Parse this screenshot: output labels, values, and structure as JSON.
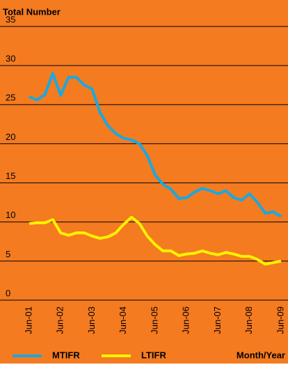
{
  "chart_data": {
    "type": "line",
    "y_label": "Total Number",
    "x_label": "Month/Year",
    "background": "#f47b20",
    "grid": true,
    "categories": [
      "Jun-01",
      null,
      null,
      null,
      "Jun-02",
      null,
      null,
      null,
      "Jun-03",
      null,
      null,
      null,
      "Jun-04",
      null,
      null,
      null,
      "Jun-05",
      null,
      null,
      null,
      "Jun-06",
      null,
      null,
      null,
      "Jun-07",
      null,
      null,
      null,
      "Jun-08",
      null,
      null,
      null,
      "Jun-09"
    ],
    "series": [
      {
        "name": "MTIFR",
        "color": "#1ba8e0",
        "values": [
          26,
          25.6,
          26.3,
          29,
          26.2,
          28.5,
          28.5,
          27.5,
          27,
          24,
          22.3,
          21.3,
          20.7,
          20.5,
          20,
          18.5,
          16,
          14.8,
          14.2,
          13,
          13.1,
          13.8,
          14.3,
          14,
          13.6,
          14,
          13.1,
          12.8,
          13.6,
          12.5,
          11.1,
          11.3,
          10.7
        ]
      },
      {
        "name": "LTIFR",
        "color": "#fff200",
        "values": [
          9.8,
          9.9,
          9.9,
          10.3,
          8.6,
          8.3,
          8.6,
          8.6,
          8.2,
          7.9,
          8.1,
          8.6,
          9.7,
          10.6,
          9.8,
          8.2,
          7.1,
          6.3,
          6.3,
          5.7,
          5.9,
          6.0,
          6.3,
          6.0,
          5.8,
          6.1,
          5.9,
          5.6,
          5.6,
          5.2,
          4.6,
          4.8,
          5.0
        ]
      }
    ],
    "ylim": [
      0,
      35
    ],
    "yticks": [
      0,
      5,
      10,
      15,
      20,
      25,
      30,
      35
    ]
  }
}
